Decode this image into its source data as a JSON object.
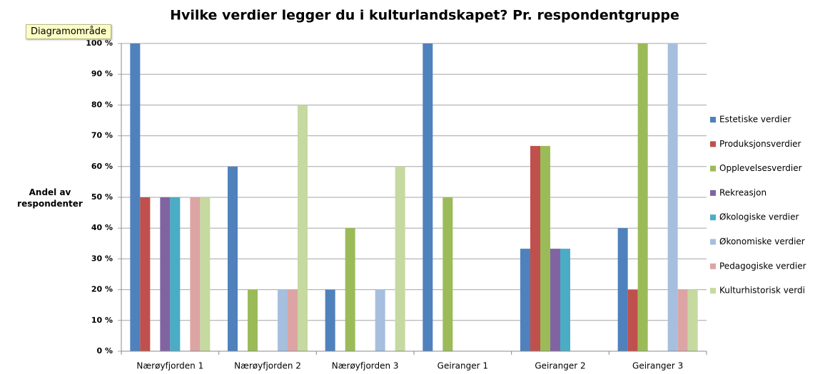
{
  "tooltip": "Diagramområde",
  "chart_data": {
    "type": "bar",
    "title": "Hvilke verdier legger du i kulturlandskapet? Pr. respondentgruppe",
    "ylabel": "Andel av respondenter",
    "categories": [
      "Nærøyfjorden 1",
      "Nærøyfjorden 2",
      "Nærøyfjorden 3",
      "Geiranger 1",
      "Geiranger 2",
      "Geiranger 3"
    ],
    "series": [
      {
        "name": "Estetiske verdier",
        "color": "#4f81bd",
        "values": [
          100,
          60,
          20,
          100,
          33.3,
          40
        ]
      },
      {
        "name": "Produksjonsverdier",
        "color": "#c0504d",
        "values": [
          50,
          0,
          0,
          0,
          66.7,
          20
        ]
      },
      {
        "name": "Opplevelsesverdier",
        "color": "#9bbb59",
        "values": [
          0,
          20,
          40,
          50,
          66.7,
          100
        ]
      },
      {
        "name": "Rekreasjon",
        "color": "#8064a2",
        "values": [
          50,
          0,
          0,
          0,
          33.3,
          0
        ]
      },
      {
        "name": "Økologiske verdier",
        "color": "#4bacc6",
        "values": [
          50,
          0,
          0,
          0,
          33.3,
          0
        ]
      },
      {
        "name": "Økonomiske verdier",
        "color": "#a7bfde",
        "values": [
          0,
          20,
          20,
          0,
          0,
          100
        ]
      },
      {
        "name": "Pedagogiske verdier",
        "color": "#dca5a4",
        "values": [
          50,
          20,
          0,
          0,
          0,
          20
        ]
      },
      {
        "name": "Kulturhistorisk verdi",
        "color": "#c6d9a0",
        "values": [
          50,
          80,
          60,
          0,
          0,
          20
        ]
      }
    ],
    "ylim": [
      0,
      100
    ],
    "yticks": [
      {
        "value": 0,
        "label": "0 %"
      },
      {
        "value": 10,
        "label": "10 %"
      },
      {
        "value": 20,
        "label": "20 %"
      },
      {
        "value": 30,
        "label": "30 %"
      },
      {
        "value": 40,
        "label": "40 %"
      },
      {
        "value": 50,
        "label": "50 %"
      },
      {
        "value": 60,
        "label": "60 %"
      },
      {
        "value": 70,
        "label": "70 %"
      },
      {
        "value": 80,
        "label": "80 %"
      },
      {
        "value": 90,
        "label": "90 %"
      },
      {
        "value": 100,
        "label": "100 %"
      }
    ],
    "grid": true,
    "legend": "right"
  }
}
